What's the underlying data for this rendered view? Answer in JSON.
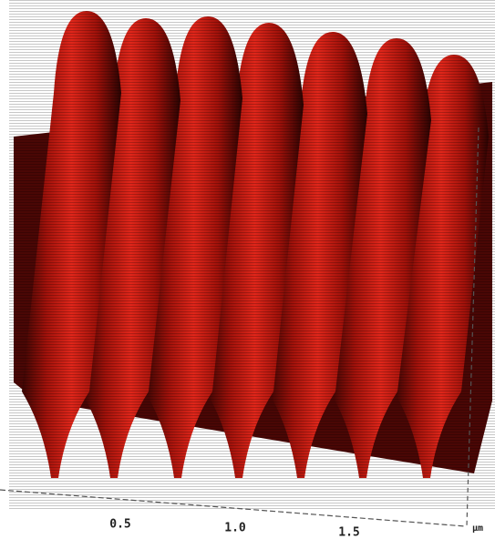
{
  "axis": {
    "ticks": [
      "0.5",
      "1.0",
      "1.5"
    ],
    "unit": "µm"
  }
}
